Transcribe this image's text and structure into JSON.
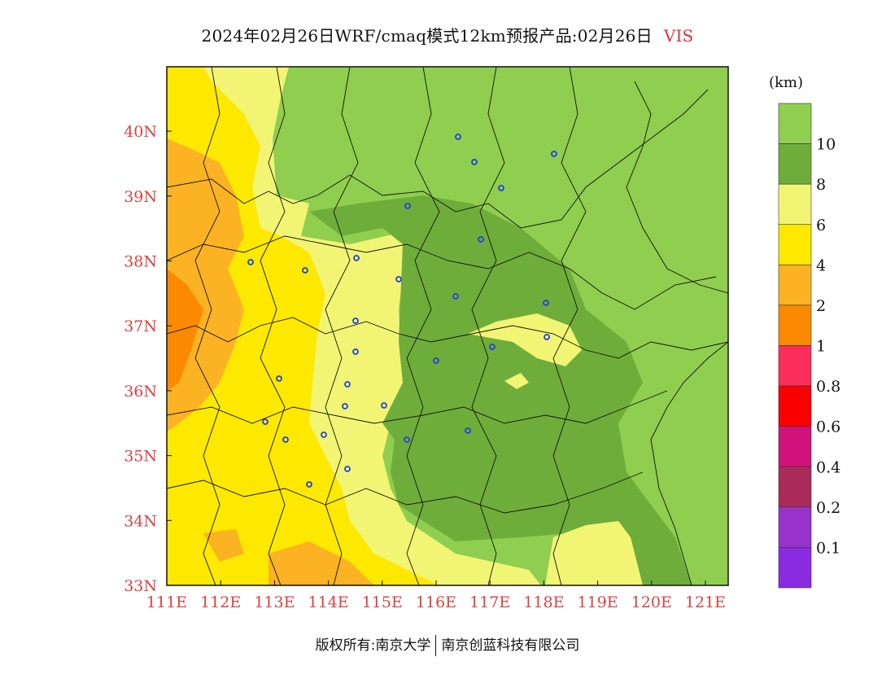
{
  "header": {
    "title": "2024年02月26日WRF/cmaq模式12km预报产品:02月26日",
    "variable": "VIS"
  },
  "colorbar": {
    "unit": "(km)",
    "labels": [
      "10",
      "8",
      "6",
      "4",
      "2",
      "1",
      "0.8",
      "0.6",
      "0.4",
      "0.2",
      "0.1"
    ],
    "colors": [
      "#8fce4f",
      "#6fad3a",
      "#f2f574",
      "#fde800",
      "#fbb223",
      "#fb8a00",
      "#fb2d5a",
      "#fb0000",
      "#d0127a",
      "#aa2a5a",
      "#9932cc",
      "#8a2be2"
    ]
  },
  "axes": {
    "x_ticks": [
      "111E",
      "112E",
      "113E",
      "114E",
      "115E",
      "116E",
      "117E",
      "118E",
      "119E",
      "120E",
      "121E"
    ],
    "y_ticks": [
      "33N",
      "34N",
      "35N",
      "36N",
      "37N",
      "38N",
      "39N",
      "40N"
    ]
  },
  "map": {
    "colors": {
      "light_green": "#8fce4f",
      "dark_green": "#6fad3a",
      "light_yellow": "#f2f574",
      "yellow": "#fde800",
      "light_orange": "#fbb223",
      "orange": "#fb8a00",
      "city_marker": "#2040e0",
      "border": "#111111"
    }
  },
  "footer": {
    "left": "版权所有:南京大学",
    "right": "南京创蓝科技有限公司"
  }
}
